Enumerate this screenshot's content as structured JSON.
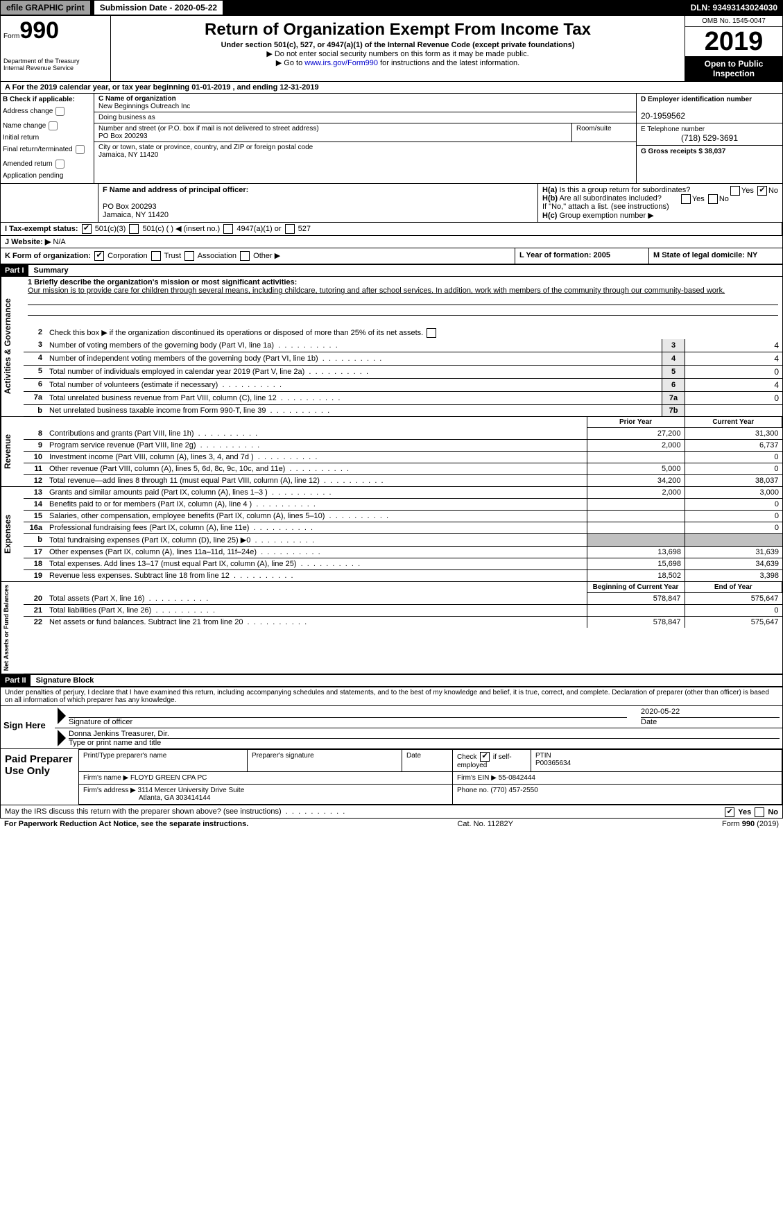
{
  "topbar": {
    "efile": "efile GRAPHIC print",
    "submission": "Submission Date - 2020-05-22",
    "dln": "DLN: 93493143024030"
  },
  "header": {
    "form_prefix": "Form",
    "form_no": "990",
    "dept1": "Department of the Treasury",
    "dept2": "Internal Revenue Service",
    "title": "Return of Organization Exempt From Income Tax",
    "subtitle": "Under section 501(c), 527, or 4947(a)(1) of the Internal Revenue Code (except private foundations)",
    "note1": "▶ Do not enter social security numbers on this form as it may be made public.",
    "note2_pre": "▶ Go to ",
    "note2_link": "www.irs.gov/Form990",
    "note2_post": " for instructions and the latest information.",
    "omb": "OMB No. 1545-0047",
    "year": "2019",
    "inspect1": "Open to Public",
    "inspect2": "Inspection"
  },
  "rowA": "A   For the 2019 calendar year, or tax year beginning 01-01-2019        , and ending 12-31-2019",
  "blockB": {
    "title": "B Check if applicable:",
    "addr": "Address change",
    "name": "Name change",
    "initial": "Initial return",
    "final": "Final return/terminated",
    "amended": "Amended return",
    "pending": "Application pending"
  },
  "blockC": {
    "label_name": "C Name of organization",
    "org_name": "New Beginnings Outreach Inc",
    "dba_label": "Doing business as",
    "addr_label": "Number and street (or P.O. box if mail is not delivered to street address)",
    "addr": "PO Box 200293",
    "room_label": "Room/suite",
    "city_label": "City or town, state or province, country, and ZIP or foreign postal code",
    "city": "Jamaica, NY  11420"
  },
  "blockD": {
    "label": "D Employer identification number",
    "val": "20-1959562"
  },
  "blockE": {
    "label": "E Telephone number",
    "val": "(718) 529-3691"
  },
  "blockG": {
    "label": "G Gross receipts $ 38,037"
  },
  "blockF": {
    "label": "F  Name and address of principal officer:",
    "addr1": "PO Box 200293",
    "addr2": "Jamaica, NY  11420"
  },
  "blockH": {
    "ha": "H(a)",
    "ha_text": "Is this a group return for subordinates?",
    "hb": "H(b)",
    "hb_text": "Are all subordinates included?",
    "hb_note": "If \"No,\" attach a list. (see instructions)",
    "hc": "H(c)",
    "hc_text": "Group exemption number ▶",
    "yes": "Yes",
    "no": "No"
  },
  "rowI": {
    "label": "I     Tax-exempt status:",
    "c3": "501(c)(3)",
    "c_other": "501(c) (  ) ◀ (insert no.)",
    "a1": "4947(a)(1) or",
    "s527": "527"
  },
  "rowJ": {
    "label": "J    Website: ▶",
    "val": "N/A"
  },
  "rowK": {
    "label": "K Form of organization:",
    "corp": "Corporation",
    "trust": "Trust",
    "assoc": "Association",
    "other": "Other ▶"
  },
  "rowL": {
    "label": "L Year of formation: 2005"
  },
  "rowM": {
    "label": "M State of legal domicile: NY"
  },
  "part1": {
    "hdr": "Part I",
    "title": "Summary"
  },
  "summary": {
    "mission_label": "1  Briefly describe the organization's mission or most significant activities:",
    "mission": "Our mission is to provide care for children through several means, including childcare, tutoring and after school services. In addition, work with members of the community through our community-based work.",
    "line2": "Check this box ▶       if the organization discontinued its operations or disposed of more than 25% of its net assets.",
    "rows_ag": [
      {
        "n": "3",
        "d": "Number of voting members of the governing body (Part VI, line 1a)",
        "box": "3",
        "v": "4"
      },
      {
        "n": "4",
        "d": "Number of independent voting members of the governing body (Part VI, line 1b)",
        "box": "4",
        "v": "4"
      },
      {
        "n": "5",
        "d": "Total number of individuals employed in calendar year 2019 (Part V, line 2a)",
        "box": "5",
        "v": "0"
      },
      {
        "n": "6",
        "d": "Total number of volunteers (estimate if necessary)",
        "box": "6",
        "v": "4"
      },
      {
        "n": "7a",
        "d": "Total unrelated business revenue from Part VIII, column (C), line 12",
        "box": "7a",
        "v": "0"
      },
      {
        "n": "b",
        "d": "Net unrelated business taxable income from Form 990-T, line 39",
        "box": "7b",
        "v": ""
      }
    ],
    "prior_hdr": "Prior Year",
    "curr_hdr": "Current Year",
    "revenue": [
      {
        "n": "8",
        "d": "Contributions and grants (Part VIII, line 1h)",
        "p": "27,200",
        "c": "31,300"
      },
      {
        "n": "9",
        "d": "Program service revenue (Part VIII, line 2g)",
        "p": "2,000",
        "c": "6,737"
      },
      {
        "n": "10",
        "d": "Investment income (Part VIII, column (A), lines 3, 4, and 7d )",
        "p": "",
        "c": "0"
      },
      {
        "n": "11",
        "d": "Other revenue (Part VIII, column (A), lines 5, 6d, 8c, 9c, 10c, and 11e)",
        "p": "5,000",
        "c": "0"
      },
      {
        "n": "12",
        "d": "Total revenue—add lines 8 through 11 (must equal Part VIII, column (A), line 12)",
        "p": "34,200",
        "c": "38,037"
      }
    ],
    "expenses": [
      {
        "n": "13",
        "d": "Grants and similar amounts paid (Part IX, column (A), lines 1–3 )",
        "p": "2,000",
        "c": "3,000"
      },
      {
        "n": "14",
        "d": "Benefits paid to or for members (Part IX, column (A), line 4 )",
        "p": "",
        "c": "0"
      },
      {
        "n": "15",
        "d": "Salaries, other compensation, employee benefits (Part IX, column (A), lines 5–10)",
        "p": "",
        "c": "0"
      },
      {
        "n": "16a",
        "d": "Professional fundraising fees (Part IX, column (A), line 11e)",
        "p": "",
        "c": "0"
      },
      {
        "n": "b",
        "d": "Total fundraising expenses (Part IX, column (D), line 25) ▶0",
        "p": "GREY",
        "c": "GREY"
      },
      {
        "n": "17",
        "d": "Other expenses (Part IX, column (A), lines 11a–11d, 11f–24e)",
        "p": "13,698",
        "c": "31,639"
      },
      {
        "n": "18",
        "d": "Total expenses. Add lines 13–17 (must equal Part IX, column (A), line 25)",
        "p": "15,698",
        "c": "34,639"
      },
      {
        "n": "19",
        "d": "Revenue less expenses. Subtract line 18 from line 12",
        "p": "18,502",
        "c": "3,398"
      }
    ],
    "boy_hdr": "Beginning of Current Year",
    "eoy_hdr": "End of Year",
    "netassets": [
      {
        "n": "20",
        "d": "Total assets (Part X, line 16)",
        "p": "578,847",
        "c": "575,647"
      },
      {
        "n": "21",
        "d": "Total liabilities (Part X, line 26)",
        "p": "",
        "c": "0"
      },
      {
        "n": "22",
        "d": "Net assets or fund balances. Subtract line 21 from line 20",
        "p": "578,847",
        "c": "575,647"
      }
    ]
  },
  "side_labels": {
    "ag": "Activities & Governance",
    "rev": "Revenue",
    "exp": "Expenses",
    "na": "Net Assets or Fund Balances"
  },
  "part2": {
    "hdr": "Part II",
    "title": "Signature Block"
  },
  "penalties": "Under penalties of perjury, I declare that I have examined this return, including accompanying schedules and statements, and to the best of my knowledge and belief, it is true, correct, and complete. Declaration of preparer (other than officer) is based on all information of which preparer has any knowledge.",
  "sign": {
    "here": "Sign Here",
    "sig_officer": "Signature of officer",
    "date": "Date",
    "sign_date": "2020-05-22",
    "name": "Donna Jenkins  Treasurer, Dir.",
    "name_label": "Type or print name and title"
  },
  "preparer": {
    "title": "Paid Preparer Use Only",
    "print_label": "Print/Type preparer's name",
    "sig_label": "Preparer's signature",
    "date_label": "Date",
    "check_label": "Check        if self-employed",
    "ptin_label": "PTIN",
    "ptin": "P00365634",
    "firm_name_label": "Firm's name   ▶",
    "firm_name": "FLOYD GREEN CPA PC",
    "firm_ein_label": "Firm's EIN ▶",
    "firm_ein": "55-0842444",
    "firm_addr_label": "Firm's address ▶",
    "firm_addr1": "3114 Mercer University Drive Suite",
    "firm_addr2": "Atlanta, GA  303414144",
    "phone_label": "Phone no.",
    "phone": "(770) 457-2550"
  },
  "discuss": "May the IRS discuss this return with the preparer shown above? (see instructions)",
  "footer": {
    "pra": "For Paperwork Reduction Act Notice, see the separate instructions.",
    "cat": "Cat. No. 11282Y",
    "form": "Form 990 (2019)"
  }
}
